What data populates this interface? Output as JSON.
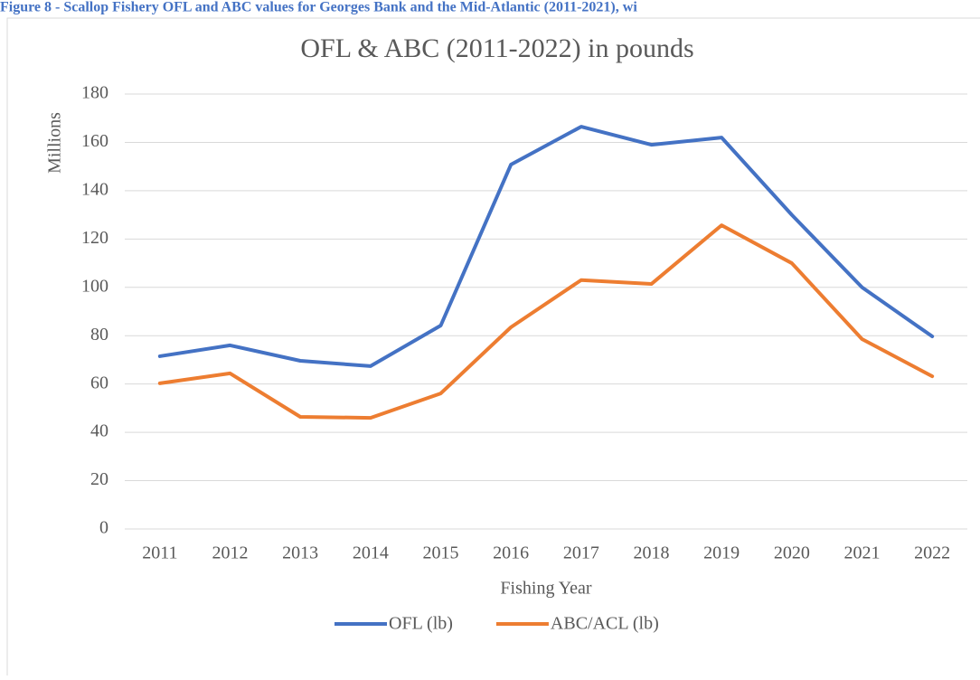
{
  "caption": "Figure 8 - Scallop Fishery OFL and ABC values for Georges Bank and the Mid-Atlantic (2011-2021), wi",
  "chart_data": {
    "type": "line",
    "title": "OFL & ABC (2011-2022) in pounds",
    "x_label": "Fishing Year",
    "y_label": "Millions",
    "categories": [
      "2011",
      "2012",
      "2013",
      "2014",
      "2015",
      "2016",
      "2017",
      "2018",
      "2019",
      "2020",
      "2021",
      "2022"
    ],
    "series": [
      {
        "name": "OFL (lb)",
        "color": "#4472c4",
        "values": [
          71.5,
          76,
          69.6,
          67.4,
          84.2,
          150.8,
          166.5,
          159,
          162,
          130,
          100,
          79.7
        ]
      },
      {
        "name": "ABC/ACL (lb)",
        "color": "#ed7d31",
        "values": [
          60.3,
          64.4,
          46.4,
          46,
          56.1,
          83.5,
          103,
          101.4,
          125.7,
          110,
          78.6,
          63.2
        ]
      }
    ],
    "ylim": [
      0,
      180
    ],
    "yticks": [
      0,
      20,
      40,
      60,
      80,
      100,
      120,
      140,
      160,
      180
    ],
    "grid": true,
    "legend": "bottom"
  }
}
